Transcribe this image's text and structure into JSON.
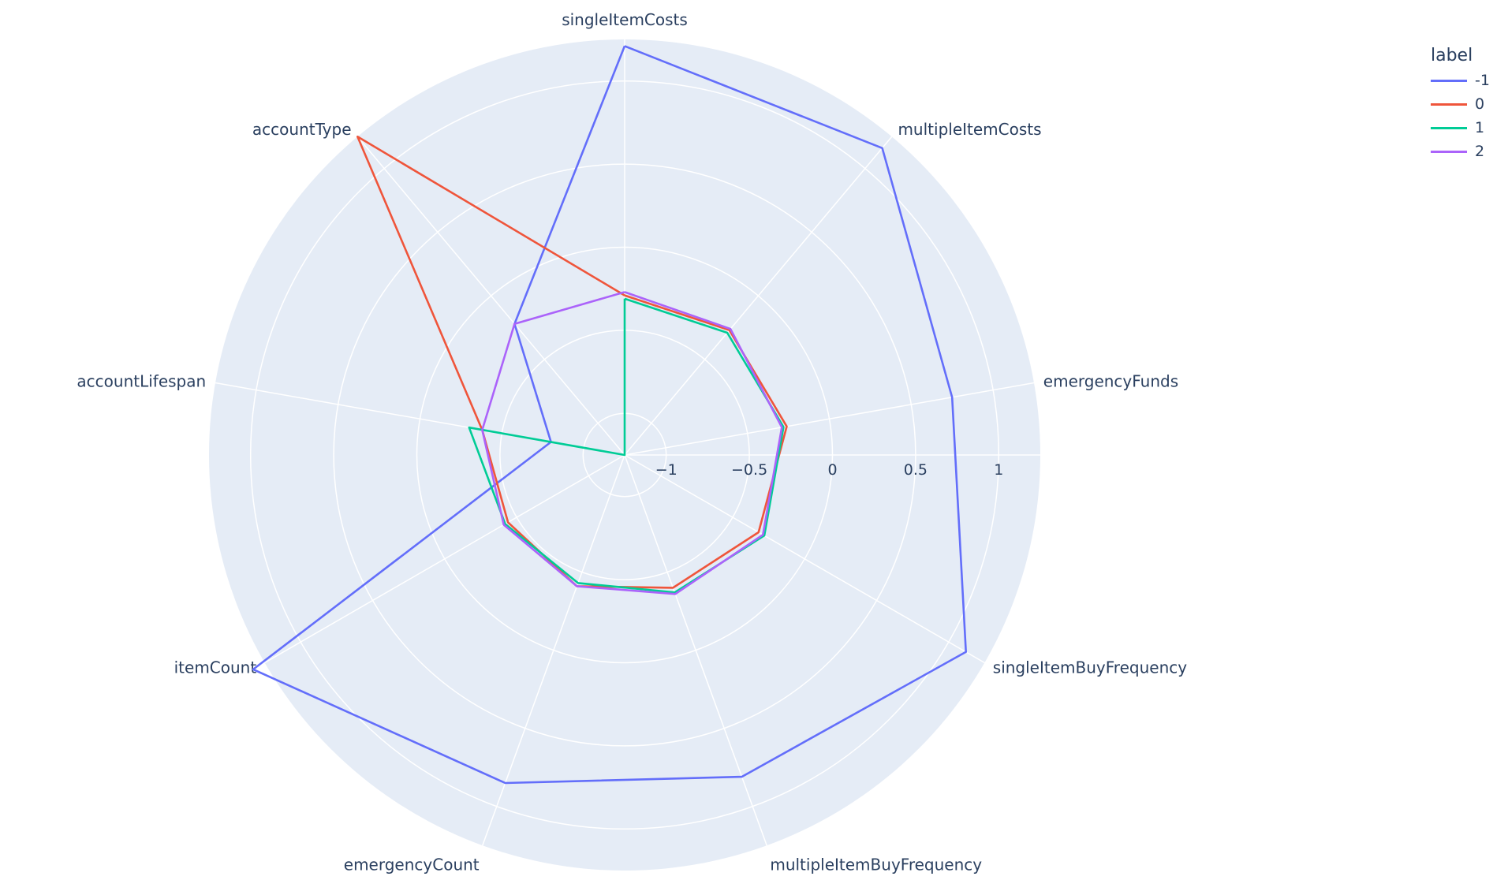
{
  "chart_data": {
    "type": "radar",
    "legend_title": "label",
    "legend_position": "top-right",
    "grid": true,
    "background_color": "#e5ecf6",
    "radial_range": [
      -1.25,
      1.25
    ],
    "radial_ticks": [
      -1,
      -0.5,
      0,
      0.5,
      1
    ],
    "radial_tick_labels": [
      "−1",
      "−0.5",
      "0",
      "0.5",
      "1"
    ],
    "categories": [
      "singleItemCosts",
      "multipleItemCosts",
      "emergencyFunds",
      "singleItemBuyFrequency",
      "multipleItemBuyFrequency",
      "emergencyCount",
      "itemCount",
      "accountLifespan",
      "accountType"
    ],
    "series": [
      {
        "name": "-1",
        "color": "#636efa",
        "values": [
          1.21,
          1.16,
          0.75,
          1.12,
          0.81,
          0.85,
          1.33,
          -0.8,
          -0.22
        ]
      },
      {
        "name": "0",
        "color": "#ef553b",
        "values": [
          -0.29,
          -0.27,
          -0.26,
          -0.32,
          -0.4,
          -0.41,
          -0.44,
          -0.38,
          1.25
        ]
      },
      {
        "name": "1",
        "color": "#00cc96",
        "values": [
          -0.31,
          -0.29,
          -0.28,
          -0.28,
          -0.37,
          -0.43,
          -0.42,
          -0.3,
          -1.25
        ]
      },
      {
        "name": "2",
        "color": "#ab63fa",
        "values": [
          -0.27,
          -0.26,
          -0.29,
          -0.29,
          -0.36,
          -0.41,
          -0.41,
          -0.38,
          -0.22
        ]
      }
    ]
  }
}
